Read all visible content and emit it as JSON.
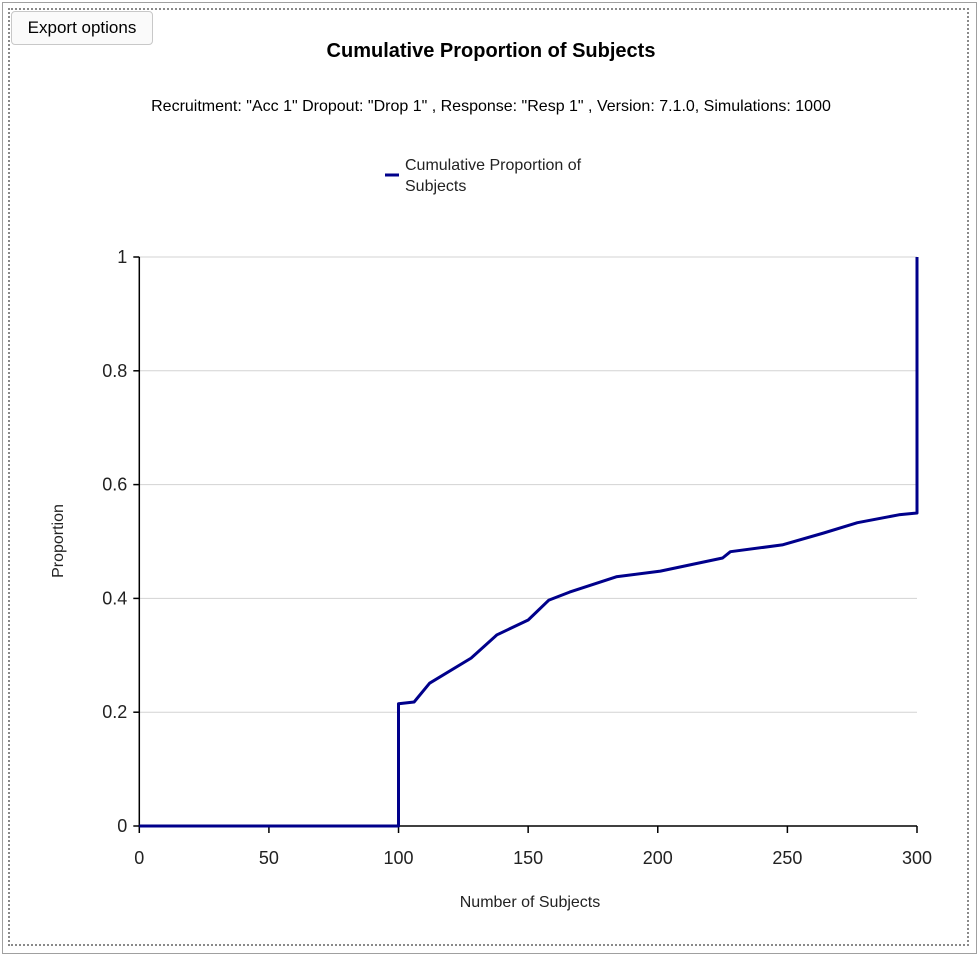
{
  "toolbar": {
    "export_label": "Export options"
  },
  "chart_data": {
    "type": "line",
    "title": "Cumulative Proportion of Subjects",
    "subtitle": "Recruitment: \"Acc 1\" Dropout: \"Drop 1\" , Response: \"Resp 1\" , Version: 7.1.0, Simulations: 1000",
    "xlabel": "Number of Subjects",
    "ylabel": "Proportion",
    "xlim": [
      0,
      300
    ],
    "ylim": [
      0,
      1
    ],
    "xticks": [
      "0",
      "50",
      "100",
      "150",
      "200",
      "250",
      "300"
    ],
    "yticks": [
      "0",
      "0.2",
      "0.4",
      "0.6",
      "0.8",
      "1"
    ],
    "grid": "horizontal",
    "legend": {
      "placement": "top-center",
      "lines": [
        "Cumulative Proportion of",
        "Subjects"
      ]
    },
    "series": [
      {
        "name": "Cumulative Proportion of Subjects",
        "color": "#00008b",
        "points": [
          [
            0,
            0
          ],
          [
            100,
            0
          ],
          [
            100,
            0.215
          ],
          [
            106,
            0.218
          ],
          [
            112,
            0.251
          ],
          [
            128,
            0.295
          ],
          [
            138,
            0.336
          ],
          [
            150,
            0.362
          ],
          [
            158,
            0.397
          ],
          [
            166,
            0.411
          ],
          [
            184,
            0.438
          ],
          [
            201,
            0.448
          ],
          [
            225,
            0.471
          ],
          [
            228,
            0.482
          ],
          [
            248,
            0.494
          ],
          [
            264,
            0.515
          ],
          [
            277,
            0.533
          ],
          [
            293,
            0.547
          ],
          [
            300,
            0.55
          ],
          [
            300,
            1
          ]
        ]
      }
    ]
  }
}
